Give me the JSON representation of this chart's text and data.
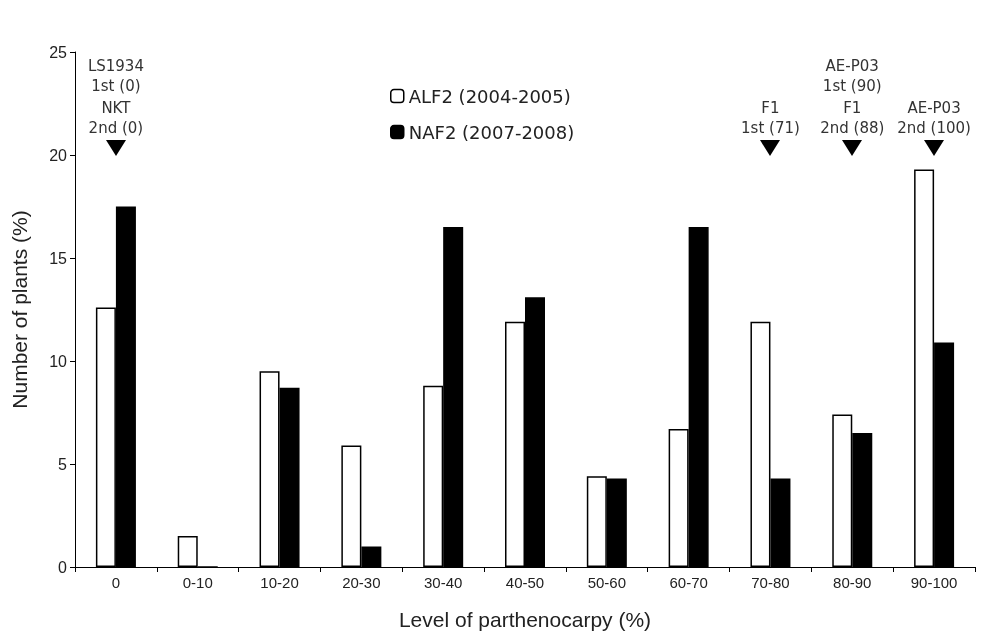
{
  "chart_data": {
    "type": "bar",
    "xlabel": "Level of parthenocarpy (%)",
    "ylabel": "Number of plants (%)",
    "categories": [
      "0",
      "0-10",
      "10-20",
      "20-30",
      "30-40",
      "40-50",
      "50-60",
      "60-70",
      "70-80",
      "80-90",
      "90-100"
    ],
    "series": [
      {
        "name": "ALF2 (2004-2005)",
        "color": "#ffffff",
        "values": [
          12.6,
          1.5,
          9.5,
          5.9,
          8.8,
          11.9,
          4.4,
          6.7,
          11.9,
          7.4,
          19.3
        ]
      },
      {
        "name": "NAF2 (2007-2008)",
        "color": "#000000",
        "values": [
          17.5,
          0,
          8.7,
          1.0,
          16.5,
          13.1,
          4.3,
          16.5,
          4.3,
          6.5,
          10.9
        ]
      }
    ],
    "ylim": [
      0,
      25
    ],
    "yticks": [
      0,
      5,
      10,
      15,
      20,
      25
    ],
    "grid": false,
    "legend": "top",
    "annotations": [
      "LS1934\n1st (0)",
      "NKT\n2nd (0)",
      "F1\n1st (71)",
      "AE-P03\n1st (90)",
      "F1\n2nd (88)",
      "AE-P03\n2nd (100)"
    ]
  }
}
